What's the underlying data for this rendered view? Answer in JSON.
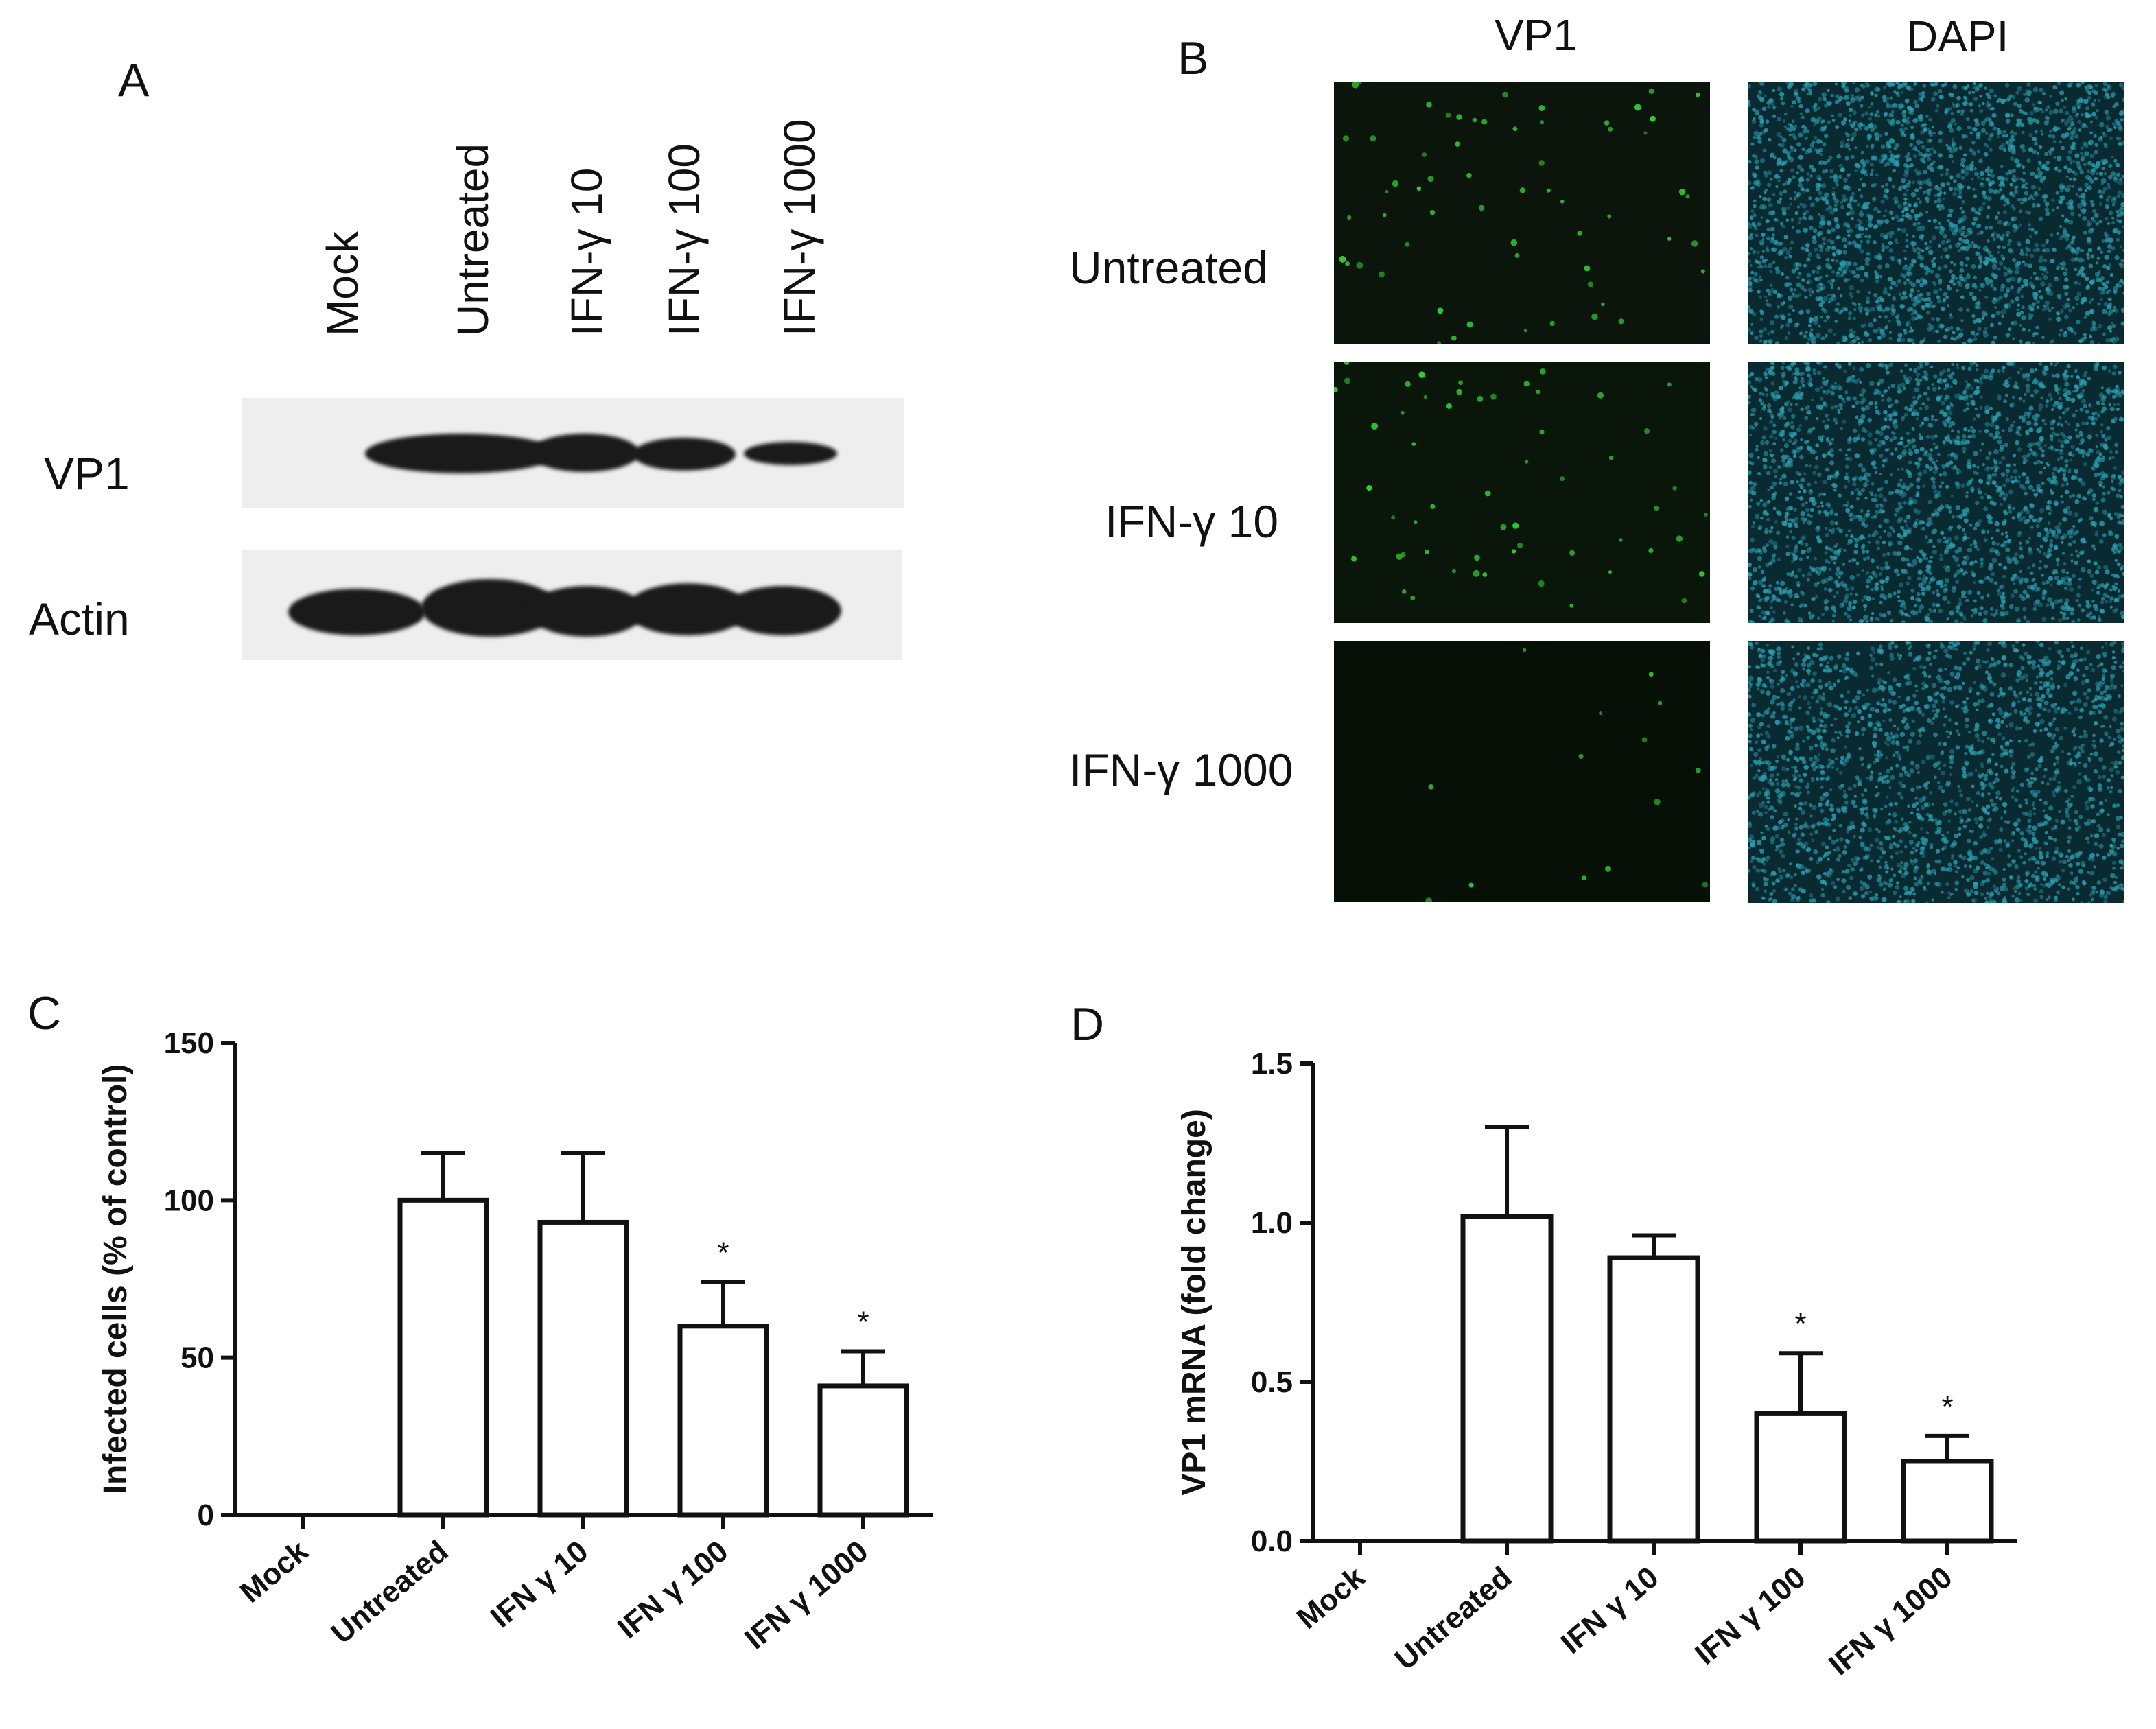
{
  "panel_a": {
    "letter": "A",
    "lanes": [
      "Mock",
      "Untreated",
      "IFN-γ 10",
      "IFN-γ 100",
      "IFN-γ 1000"
    ],
    "rows": [
      "VP1",
      "Actin"
    ]
  },
  "panel_b": {
    "letter": "B",
    "columns": [
      "VP1",
      "DAPI"
    ],
    "rows": [
      "Untreated",
      "IFN-γ 10",
      "IFN-γ 1000"
    ]
  },
  "colors": {
    "vp1_dot": "#33cc33",
    "dapi": "#2a9fb0",
    "bars": "#ffffff",
    "ink": "#111111"
  },
  "chart_data": [
    {
      "panel": "C",
      "type": "bar",
      "categories": [
        "Mock",
        "Untreated",
        "IFN γ 10",
        "IFN γ 100",
        "IFN γ 1000"
      ],
      "values": [
        0,
        100,
        93,
        60,
        41
      ],
      "errors": [
        0,
        15,
        22,
        14,
        11
      ],
      "significance": [
        "",
        "",
        "",
        "*",
        "*"
      ],
      "ylabel": "Infected cells (% of control)",
      "yticks": [
        "0",
        "50",
        "100",
        "150"
      ],
      "ylim": [
        0,
        150
      ]
    },
    {
      "panel": "D",
      "type": "bar",
      "categories": [
        "Mock",
        "Untreated",
        "IFN γ 10",
        "IFN γ 100",
        "IFN γ 1000"
      ],
      "values": [
        0,
        1.02,
        0.89,
        0.4,
        0.25
      ],
      "errors": [
        0,
        0.28,
        0.07,
        0.19,
        0.08
      ],
      "significance": [
        "",
        "",
        "",
        "*",
        "*"
      ],
      "ylabel": "VP1 mRNA (fold change)",
      "yticks": [
        "0.0",
        "0.5",
        "1.0",
        "1.5"
      ],
      "ylim": [
        0,
        1.5
      ]
    }
  ]
}
